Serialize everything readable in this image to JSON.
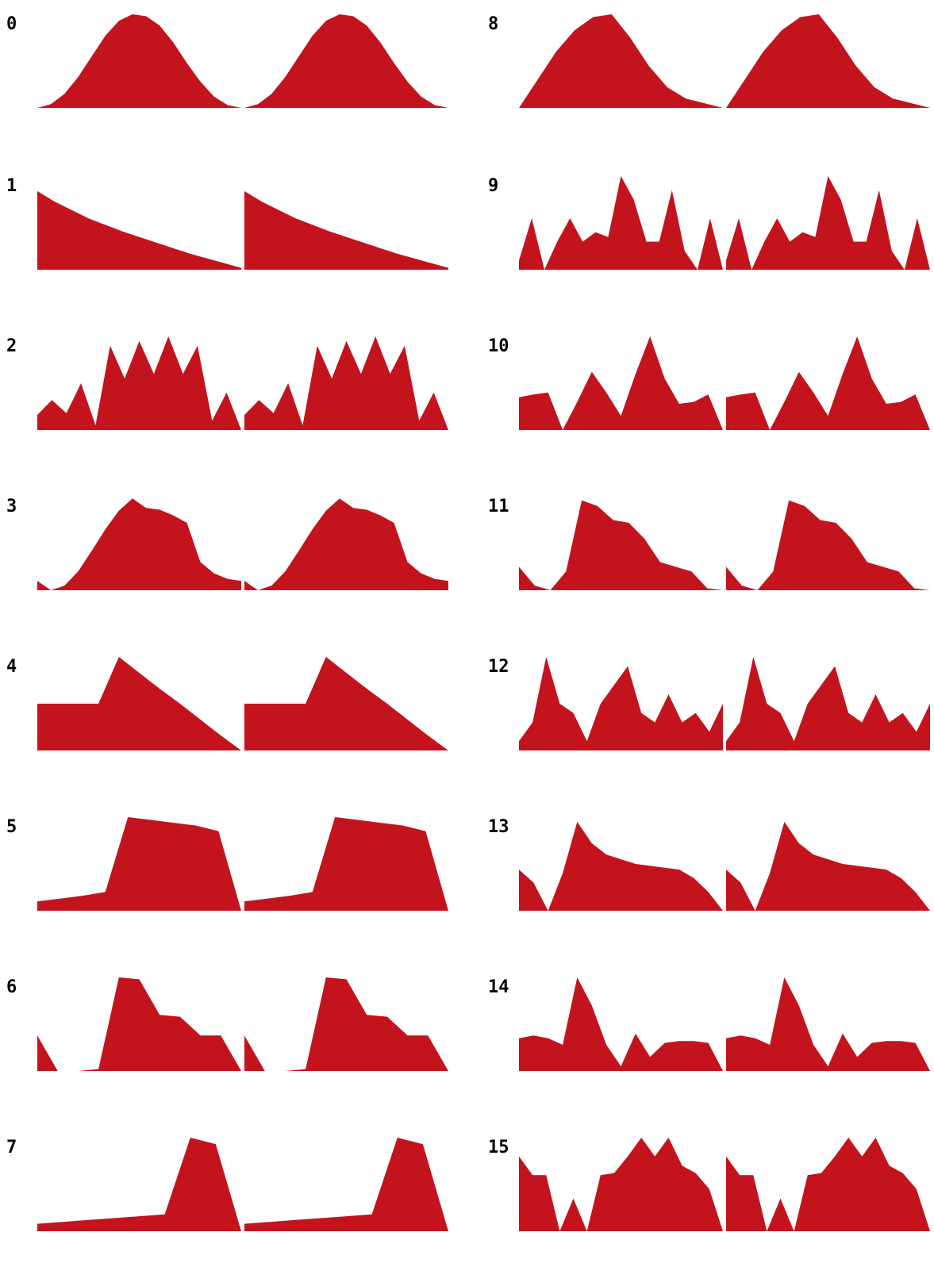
{
  "colors": {
    "fill": "#c3141e",
    "label": "#000000",
    "background": "#ffffff"
  },
  "chart_data": {
    "type": "area",
    "description": "16 periodic waveform shapes; each panel shows two cycles of one waveform as a filled area",
    "waveforms": [
      {
        "label": "0",
        "shape": "raised-cosine bump",
        "values": [
          0,
          0.04,
          0.15,
          0.33,
          0.55,
          0.77,
          0.93,
          1,
          0.98,
          0.88,
          0.7,
          0.48,
          0.28,
          0.12,
          0.03,
          0
        ]
      },
      {
        "label": "1",
        "shape": "decaying ramp",
        "values": [
          0.84,
          0.73,
          0.64,
          0.55,
          0.48,
          0.41,
          0.35,
          0.29,
          0.23,
          0.17,
          0.12,
          0.07,
          0.02
        ]
      },
      {
        "label": "2",
        "shape": "multi-peak sawtooth",
        "values": [
          0.16,
          0.32,
          0.18,
          0.5,
          0.05,
          0.9,
          0.55,
          0.95,
          0.6,
          1,
          0.6,
          0.9,
          0.1,
          0.4,
          0
        ]
      },
      {
        "label": "3",
        "shape": "rounded pulse with step",
        "values": [
          0.1,
          0,
          0.05,
          0.2,
          0.42,
          0.65,
          0.85,
          0.98,
          0.88,
          0.86,
          0.8,
          0.72,
          0.3,
          0.18,
          0.12,
          0.1
        ]
      },
      {
        "label": "4",
        "shape": "step with falling ramp",
        "values": [
          0.5,
          0.5,
          0.5,
          0.5,
          1,
          0.83,
          0.66,
          0.5,
          0.33,
          0.16,
          0
        ]
      },
      {
        "label": "5",
        "shape": "ramp then plateau",
        "values": [
          0.1,
          0.13,
          0.16,
          0.2,
          1,
          0.97,
          0.94,
          0.91,
          0.85,
          0
        ]
      },
      {
        "label": "6",
        "shape": "stepped pulse",
        "values": [
          0.38,
          0,
          0,
          0.02,
          1,
          0.98,
          0.6,
          0.58,
          0.38,
          0.38,
          0
        ]
      },
      {
        "label": "7",
        "shape": "slow ramp with spike",
        "values": [
          0.08,
          0.1,
          0.12,
          0.14,
          0.16,
          0.18,
          1,
          0.93,
          0
        ]
      },
      {
        "label": "8",
        "shape": "skewed bump",
        "values": [
          0,
          0.3,
          0.6,
          0.83,
          0.97,
          1,
          0.75,
          0.45,
          0.22,
          0.1,
          0.05,
          0
        ]
      },
      {
        "label": "9",
        "shape": "noisy peaks",
        "values": [
          0.1,
          0.55,
          0,
          0.3,
          0.55,
          0.3,
          0.4,
          0.35,
          1,
          0.75,
          0.3,
          0.3,
          0.85,
          0.2,
          0,
          0.55,
          0
        ]
      },
      {
        "label": "10",
        "shape": "smooth multi-bump",
        "values": [
          0.35,
          0.38,
          0.4,
          0,
          0.3,
          0.62,
          0.4,
          0.15,
          0.6,
          1,
          0.55,
          0.28,
          0.3,
          0.38,
          0
        ]
      },
      {
        "label": "11",
        "shape": "formant envelope",
        "values": [
          0.25,
          0.05,
          0,
          0.2,
          0.96,
          0.9,
          0.75,
          0.72,
          0.55,
          0.3,
          0.25,
          0.2,
          0.02,
          0
        ]
      },
      {
        "label": "12",
        "shape": "dense noise",
        "values": [
          0.1,
          0.3,
          1,
          0.5,
          0.4,
          0.1,
          0.5,
          0.7,
          0.9,
          0.4,
          0.3,
          0.6,
          0.3,
          0.4,
          0.2,
          0.5
        ]
      },
      {
        "label": "13",
        "shape": "attack and decay",
        "values": [
          0.44,
          0.3,
          0,
          0.4,
          0.95,
          0.72,
          0.6,
          0.55,
          0.5,
          0.48,
          0.46,
          0.44,
          0.35,
          0.2,
          0
        ]
      },
      {
        "label": "14",
        "shape": "noisy plateau",
        "values": [
          0.35,
          0.38,
          0.35,
          0.28,
          1,
          0.7,
          0.28,
          0.05,
          0.4,
          0.15,
          0.3,
          0.32,
          0.32,
          0.3,
          0
        ]
      },
      {
        "label": "15",
        "shape": "cusped arcs",
        "values": [
          0.8,
          0.6,
          0.6,
          0,
          0.35,
          0,
          0.6,
          0.62,
          0.8,
          1,
          0.8,
          1,
          0.7,
          0.62,
          0.45,
          0
        ]
      }
    ]
  }
}
